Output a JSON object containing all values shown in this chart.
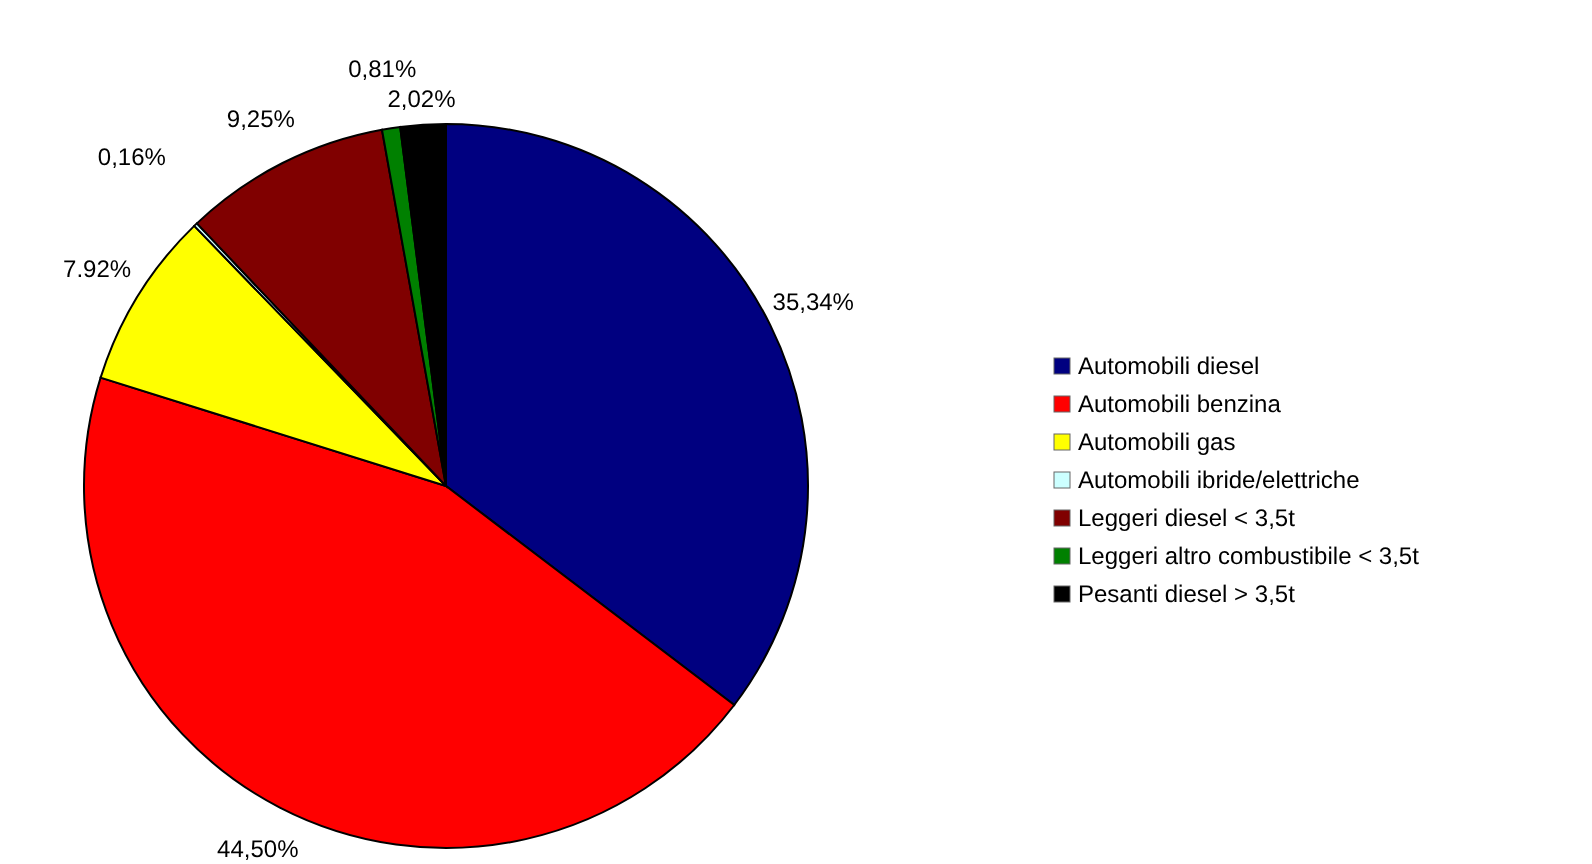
{
  "chart_data": {
    "type": "pie",
    "categories": [
      "Automobili diesel",
      "Automobili benzina",
      "Automobili gas",
      "Automobili ibride/elettriche",
      "Leggeri diesel < 3,5t",
      "Leggeri altro combustibile < 3,5t",
      "Pesanti diesel > 3,5t"
    ],
    "values": [
      35.34,
      44.5,
      7.92,
      0.16,
      9.25,
      0.81,
      2.02
    ],
    "value_labels": [
      "35,34%",
      "44,50%",
      "7.92%",
      "0,16%",
      "9,25%",
      "0,81%",
      "2,02%"
    ],
    "colors": [
      "#000080",
      "#ff0000",
      "#ffff00",
      "#ccffff",
      "#800000",
      "#008000",
      "#000000"
    ],
    "legend": "right"
  }
}
